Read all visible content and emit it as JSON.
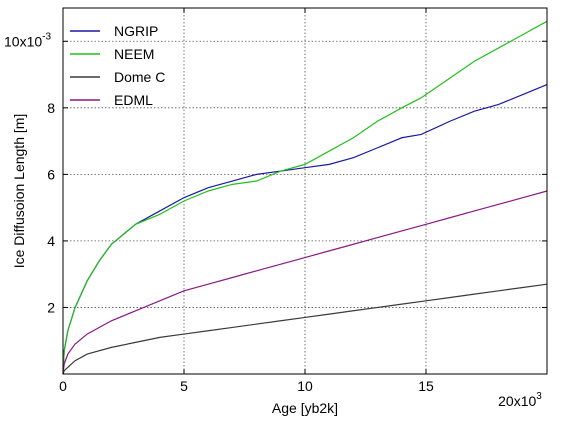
{
  "chart_data": {
    "type": "line",
    "xlabel": "Age [yb2k]",
    "ylabel": "Ice Diffusoion Length [m]",
    "x_multiplier": {
      "base": "20x10",
      "exp": "3"
    },
    "y_multiplier": {
      "base": "10x10",
      "exp": "-3"
    },
    "xlim": [
      0,
      20000
    ],
    "ylim": [
      0,
      0.011
    ],
    "x_ticks": [
      0,
      5000,
      10000,
      15000
    ],
    "x_tick_labels": [
      "0",
      "5",
      "10",
      "15"
    ],
    "y_ticks": [
      0.002,
      0.004,
      0.006,
      0.008
    ],
    "y_tick_labels": [
      "2",
      "4",
      "6",
      "8"
    ],
    "grid": true,
    "legend_position": "top-left",
    "series": [
      {
        "name": "NGRIP",
        "color": "#1a1aa0",
        "x": [
          0,
          50,
          200,
          500,
          1000,
          1500,
          2000,
          3000,
          4000,
          5000,
          6000,
          7000,
          8000,
          9000,
          10000,
          11000,
          12000,
          13000,
          14000,
          14800,
          16000,
          17000,
          18000,
          19000,
          20000
        ],
        "y": [
          0,
          0.0007,
          0.0013,
          0.002,
          0.0028,
          0.0034,
          0.0039,
          0.0045,
          0.0049,
          0.0053,
          0.0056,
          0.0058,
          0.006,
          0.0061,
          0.0062,
          0.0063,
          0.0065,
          0.0068,
          0.0071,
          0.0072,
          0.0076,
          0.0079,
          0.0081,
          0.0084,
          0.0087
        ]
      },
      {
        "name": "NEEM",
        "color": "#22c01c",
        "x": [
          0,
          50,
          200,
          500,
          1000,
          1500,
          2000,
          3000,
          4000,
          5000,
          6000,
          7000,
          8000,
          9000,
          10000,
          11000,
          12000,
          13000,
          14000,
          14800,
          16000,
          17000,
          18000,
          19000,
          20000
        ],
        "y": [
          0,
          0.0007,
          0.0013,
          0.002,
          0.0028,
          0.0034,
          0.0039,
          0.0045,
          0.0048,
          0.0052,
          0.0055,
          0.0057,
          0.0058,
          0.0061,
          0.0063,
          0.0067,
          0.0071,
          0.0076,
          0.008,
          0.0083,
          0.0089,
          0.0094,
          0.0098,
          0.0102,
          0.0106
        ]
      },
      {
        "name": "Dome C",
        "color": "#3a3a3a",
        "x": [
          0,
          50,
          200,
          500,
          1000,
          2000,
          3000,
          4000,
          5000,
          6000,
          7000,
          8000,
          9000,
          10000,
          11000,
          12000,
          13000,
          14000,
          15000,
          16000,
          17000,
          18000,
          19000,
          20000
        ],
        "y": [
          0,
          0.0001,
          0.0002,
          0.0004,
          0.0006,
          0.0008,
          0.00095,
          0.0011,
          0.0012,
          0.0013,
          0.0014,
          0.0015,
          0.0016,
          0.0017,
          0.0018,
          0.0019,
          0.002,
          0.0021,
          0.0022,
          0.0023,
          0.0024,
          0.0025,
          0.0026,
          0.0027
        ]
      },
      {
        "name": "EDML",
        "color": "#8a1a82",
        "x": [
          0,
          50,
          200,
          500,
          1000,
          2000,
          3000,
          4000,
          5000,
          6000,
          7000,
          8000,
          9000,
          10000,
          11000,
          12000,
          13000,
          14000,
          15000,
          16000,
          17000,
          18000,
          19000,
          20000
        ],
        "y": [
          0,
          0.0003,
          0.0006,
          0.0009,
          0.0012,
          0.0016,
          0.0019,
          0.0022,
          0.0025,
          0.0027,
          0.0029,
          0.0031,
          0.0033,
          0.0035,
          0.0037,
          0.0039,
          0.0041,
          0.0043,
          0.0045,
          0.0047,
          0.0049,
          0.0051,
          0.0053,
          0.0055
        ]
      }
    ]
  }
}
